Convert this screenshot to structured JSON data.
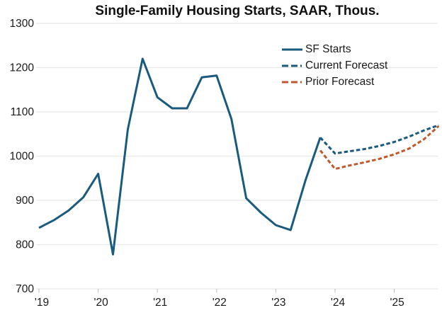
{
  "chart_data": {
    "type": "line",
    "title": "Single-Family Housing Starts, SAAR, Thous.",
    "ylabel": "",
    "xlabel": "",
    "ylim": [
      700,
      1300
    ],
    "y_ticks": [
      1300,
      1200,
      1100,
      1000,
      900,
      800,
      700
    ],
    "x_ticks": {
      "years": [
        2019,
        2020,
        2021,
        2022,
        2023,
        2024,
        2025
      ],
      "labels": [
        "'19",
        "'20",
        "'21",
        "'22",
        "'23",
        "'24",
        "'25"
      ]
    },
    "grid": "horizontal",
    "legend_position": "upper right",
    "legend": [
      {
        "label": "SF Starts",
        "style": "solid",
        "color": "#1a5a7e"
      },
      {
        "label": "Current Forecast",
        "style": "dashed",
        "color": "#1a5a7e"
      },
      {
        "label": "Prior Forecast",
        "style": "dashed",
        "color": "#c0592b"
      }
    ],
    "series": [
      {
        "name": "SF Starts",
        "color": "#1a5a7e",
        "dash": "solid",
        "points": [
          [
            2019.0,
            838
          ],
          [
            2019.25,
            855
          ],
          [
            2019.5,
            877
          ],
          [
            2019.75,
            907
          ],
          [
            2020.0,
            960
          ],
          [
            2020.25,
            778
          ],
          [
            2020.5,
            1060
          ],
          [
            2020.75,
            1220
          ],
          [
            2021.0,
            1133
          ],
          [
            2021.25,
            1108
          ],
          [
            2021.5,
            1108
          ],
          [
            2021.75,
            1178
          ],
          [
            2022.0,
            1182
          ],
          [
            2022.25,
            1084
          ],
          [
            2022.5,
            905
          ],
          [
            2022.75,
            872
          ],
          [
            2023.0,
            844
          ],
          [
            2023.25,
            833
          ],
          [
            2023.5,
            945
          ],
          [
            2023.75,
            1042
          ]
        ]
      },
      {
        "name": "Current Forecast",
        "color": "#1a5a7e",
        "dash": "dashed",
        "points": [
          [
            2023.75,
            1042
          ],
          [
            2024.0,
            1006
          ],
          [
            2024.25,
            1011
          ],
          [
            2024.5,
            1016
          ],
          [
            2024.75,
            1023
          ],
          [
            2025.0,
            1032
          ],
          [
            2025.25,
            1044
          ],
          [
            2025.5,
            1058
          ],
          [
            2025.75,
            1070
          ]
        ]
      },
      {
        "name": "Prior Forecast",
        "color": "#c0592b",
        "dash": "dashed",
        "points": [
          [
            2023.75,
            1013
          ],
          [
            2024.0,
            971
          ],
          [
            2024.25,
            979
          ],
          [
            2024.5,
            986
          ],
          [
            2024.75,
            994
          ],
          [
            2025.0,
            1004
          ],
          [
            2025.25,
            1017
          ],
          [
            2025.5,
            1038
          ],
          [
            2025.75,
            1068
          ]
        ]
      }
    ],
    "colors": {
      "line_blue": "#1a5a7e",
      "line_orange": "#c0592b",
      "gridline": "#e8e8e8",
      "tick_mark": "#bbbbbb",
      "text": "#1a1a1a"
    }
  }
}
